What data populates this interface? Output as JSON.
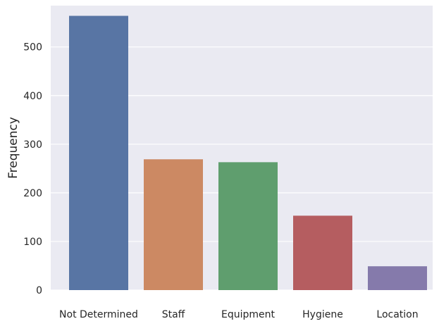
{
  "chart_data": {
    "type": "bar",
    "categories": [
      "Not Determined",
      "Staff",
      "Equipment",
      "Hygiene",
      "Location"
    ],
    "values": [
      564,
      269,
      263,
      153,
      49
    ],
    "colors": [
      "#5875a4",
      "#cc8963",
      "#5f9e6e",
      "#b55d60",
      "#857aab"
    ],
    "ylabel": "Frequency",
    "xlabel": "",
    "ylim": [
      0,
      585
    ],
    "yticks": [
      0,
      100,
      200,
      300,
      400,
      500
    ],
    "grid": true,
    "background": "#eaeaf2"
  }
}
